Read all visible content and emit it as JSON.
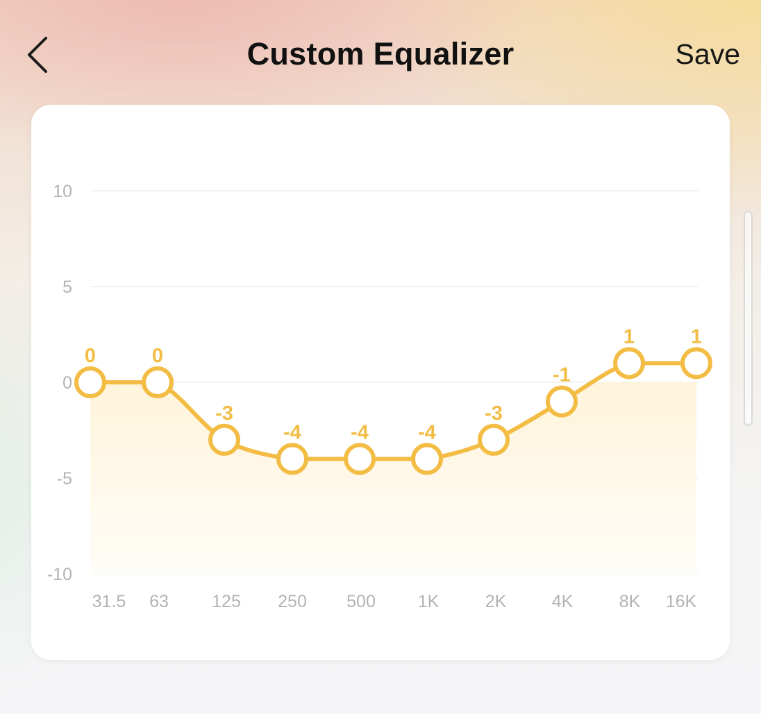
{
  "header": {
    "title": "Custom Equalizer",
    "save_label": "Save"
  },
  "icons": {
    "back": "chevron-left-icon"
  },
  "colors": {
    "accent": "#f3bd45",
    "grid": "#efefef",
    "axis_label": "#b3b3b3",
    "title_text": "#111111"
  },
  "chart_data": {
    "type": "line",
    "categories": [
      "31.5",
      "63",
      "125",
      "250",
      "500",
      "1K",
      "2K",
      "4K",
      "8K",
      "16K"
    ],
    "values": [
      0,
      0,
      -3,
      -4,
      -4,
      -4,
      -3,
      -1,
      1,
      1
    ],
    "data_labels": [
      "0",
      "0",
      "-3",
      "-4",
      "-4",
      "-4",
      "-3",
      "-1",
      "1",
      "1"
    ],
    "y_ticks": [
      10,
      5,
      0,
      -5,
      -10
    ],
    "ylim": [
      -10,
      10
    ],
    "grid": true,
    "fill_below_zero": true
  }
}
